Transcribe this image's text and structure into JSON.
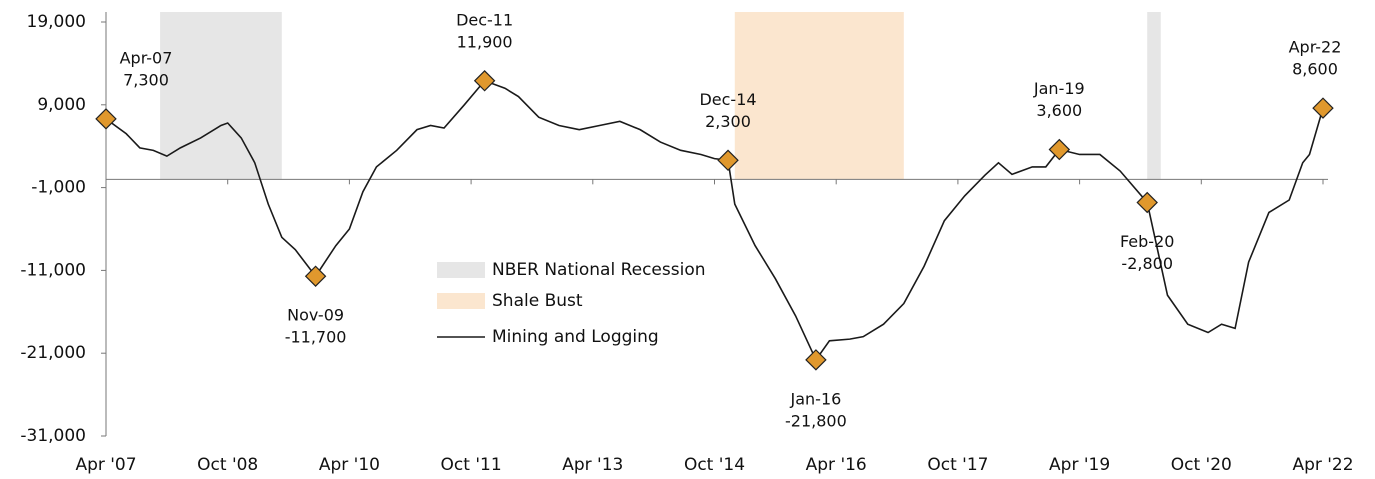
{
  "chart_data": {
    "type": "line",
    "x": [
      "2007-04",
      "2007-07",
      "2007-09",
      "2007-11",
      "2008-01",
      "2008-03",
      "2008-06",
      "2008-09",
      "2008-10",
      "2008-12",
      "2009-02",
      "2009-04",
      "2009-06",
      "2009-08",
      "2009-11",
      "2010-02",
      "2010-04",
      "2010-06",
      "2010-08",
      "2010-11",
      "2011-02",
      "2011-04",
      "2011-06",
      "2011-09",
      "2011-12",
      "2012-03",
      "2012-05",
      "2012-08",
      "2012-11",
      "2013-02",
      "2013-05",
      "2013-08",
      "2013-11",
      "2014-02",
      "2014-05",
      "2014-08",
      "2014-10",
      "2014-12",
      "2015-01",
      "2015-04",
      "2015-07",
      "2015-10",
      "2016-01",
      "2016-03",
      "2016-06",
      "2016-08",
      "2016-11",
      "2017-02",
      "2017-05",
      "2017-08",
      "2017-11",
      "2018-02",
      "2018-04",
      "2018-06",
      "2018-09",
      "2018-11",
      "2019-01",
      "2019-04",
      "2019-07",
      "2019-10",
      "2020-02",
      "2020-05",
      "2020-08",
      "2020-11",
      "2021-01",
      "2021-03",
      "2021-05",
      "2021-08",
      "2021-11",
      "2022-01",
      "2022-02",
      "2022-04"
    ],
    "series": [
      {
        "name": "Mining and Logging",
        "color": "#1a1a1a",
        "values": [
          7300,
          5500,
          3800,
          3500,
          2800,
          3800,
          5000,
          6500,
          6800,
          5000,
          2000,
          -3000,
          -7000,
          -8500,
          -11700,
          -8000,
          -6000,
          -1500,
          1500,
          3500,
          6000,
          6500,
          6200,
          9000,
          11900,
          11000,
          10000,
          7500,
          6500,
          6000,
          6500,
          7000,
          6000,
          4500,
          3500,
          3000,
          2500,
          2300,
          -3000,
          -8000,
          -12000,
          -16500,
          -21800,
          -19500,
          -19300,
          -19000,
          -17500,
          -15000,
          -10500,
          -5000,
          -2000,
          500,
          2000,
          600,
          1500,
          1500,
          3600,
          3000,
          3000,
          1000,
          -2800,
          -14000,
          -17500,
          -18500,
          -17500,
          -18000,
          -10000,
          -4000,
          -2500,
          2000,
          3000,
          8600
        ]
      }
    ],
    "bands": [
      {
        "name": "NBER National Recession",
        "color": "#e6e6e6",
        "ranges": [
          [
            "2007-12",
            "2009-06"
          ],
          [
            "2020-02",
            "2020-04"
          ]
        ]
      },
      {
        "name": "Shale Bust",
        "color": "#fbe6cf",
        "ranges": [
          [
            "2015-01",
            "2017-02"
          ]
        ]
      }
    ],
    "annotations": [
      {
        "x": "2007-04",
        "label": "Apr-07",
        "value": 7300,
        "value_label": "7,300"
      },
      {
        "x": "2009-11",
        "label": "Nov-09",
        "value": -11700,
        "value_label": "-11,700"
      },
      {
        "x": "2011-12",
        "label": "Dec-11",
        "value": 11900,
        "value_label": "11,900"
      },
      {
        "x": "2014-12",
        "label": "Dec-14",
        "value": 2300,
        "value_label": "2,300"
      },
      {
        "x": "2016-01",
        "label": "Jan-16",
        "value": -21800,
        "value_label": "-21,800"
      },
      {
        "x": "2019-01",
        "label": "Jan-19",
        "value": 3600,
        "value_label": "3,600"
      },
      {
        "x": "2020-02",
        "label": "Feb-20",
        "value": -2800,
        "value_label": "-2,800"
      },
      {
        "x": "2022-04",
        "label": "Apr-22",
        "value": 8600,
        "value_label": "8,600"
      }
    ],
    "marker_color": "#e0982d",
    "xlim": [
      "2007-04",
      "2022-04"
    ],
    "xticks": [
      {
        "value": "2007-04",
        "label": "Apr '07"
      },
      {
        "value": "2008-10",
        "label": "Oct '08"
      },
      {
        "value": "2010-04",
        "label": "Apr '10"
      },
      {
        "value": "2011-10",
        "label": "Oct '11"
      },
      {
        "value": "2013-04",
        "label": "Apr '13"
      },
      {
        "value": "2014-10",
        "label": "Oct '14"
      },
      {
        "value": "2016-04",
        "label": "Apr '16"
      },
      {
        "value": "2017-10",
        "label": "Oct '17"
      },
      {
        "value": "2019-04",
        "label": "Apr '19"
      },
      {
        "value": "2020-10",
        "label": "Oct '20"
      },
      {
        "value": "2022-04",
        "label": "Apr '22"
      }
    ],
    "ylim": [
      -31000,
      19000
    ],
    "yticks": [
      {
        "value": -31000,
        "label": "-31,000"
      },
      {
        "value": -21000,
        "label": "-21,000"
      },
      {
        "value": -11000,
        "label": "-11,000"
      },
      {
        "value": -1000,
        "label": "-1,000"
      },
      {
        "value": 9000,
        "label": "9,000"
      },
      {
        "value": 19000,
        "label": "19,000"
      }
    ]
  }
}
